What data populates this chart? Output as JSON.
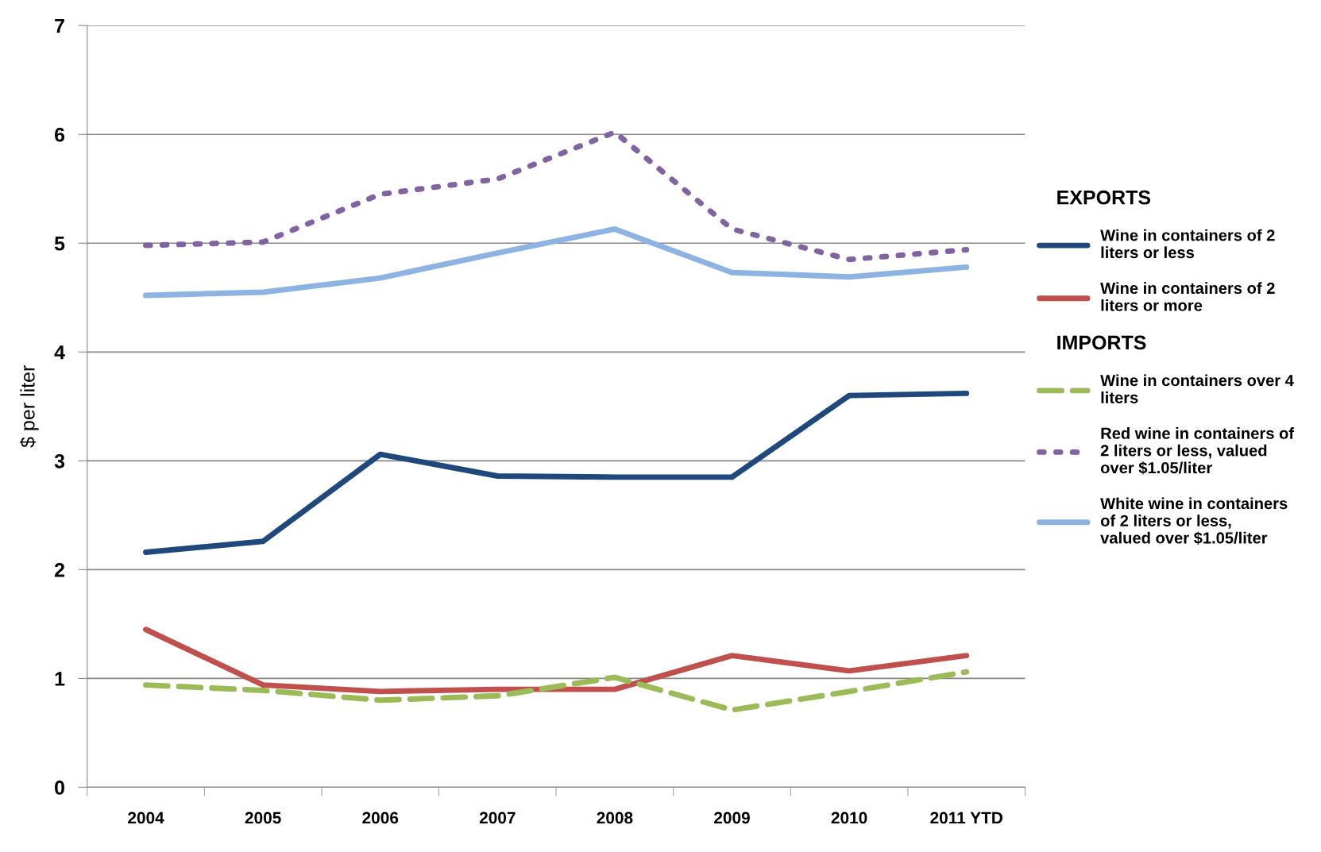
{
  "chart_data": {
    "type": "line",
    "ylabel": "$ per liter",
    "categories": [
      "2004",
      "2005",
      "2006",
      "2007",
      "2008",
      "2009",
      "2010",
      "2011 YTD"
    ],
    "series": [
      {
        "name": "Wine in containers of 2 liters or less",
        "color": "#1f497d",
        "line_style": "solid",
        "values": [
          2.16,
          2.26,
          3.06,
          2.86,
          2.85,
          2.85,
          3.6,
          3.62
        ]
      },
      {
        "name": "Wine in containers of 2 liters or more",
        "color": "#c0504d",
        "line_style": "solid",
        "values": [
          1.45,
          0.94,
          0.88,
          0.9,
          0.9,
          1.21,
          1.07,
          1.21
        ]
      },
      {
        "name": "Wine in containers over 4 liters",
        "color": "#9bbb59",
        "line_style": "dashed",
        "values": [
          0.94,
          0.89,
          0.8,
          0.84,
          1.01,
          0.71,
          0.88,
          1.06
        ]
      },
      {
        "name": "Red wine in containers of 2 liters or less, valued over $1.05/liter",
        "color": "#8064a2",
        "line_style": "dotted",
        "values": [
          4.98,
          5.01,
          5.45,
          5.59,
          6.02,
          5.13,
          4.85,
          4.94
        ]
      },
      {
        "name": "White wine in containers of 2 liters or less, valued over $1.05/liter",
        "color": "#8db3e2",
        "line_style": "solid",
        "values": [
          4.52,
          4.55,
          4.68,
          4.91,
          5.13,
          4.73,
          4.69,
          4.78
        ]
      }
    ],
    "annotations": [
      "EXPORTS",
      "IMPORTS"
    ],
    "ylim": [
      0,
      7
    ],
    "yticks": [
      0,
      1,
      2,
      3,
      4,
      5,
      6,
      7
    ],
    "grid": "y",
    "legend": "right",
    "marker": "none"
  }
}
